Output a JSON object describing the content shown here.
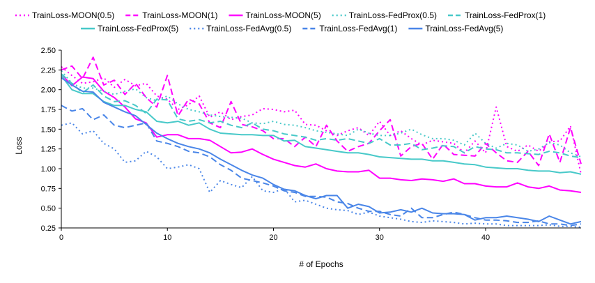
{
  "chart_data": {
    "type": "line",
    "xlabel": "# of Epochs",
    "ylabel": "Loss",
    "xlim": [
      0,
      49
    ],
    "ylim": [
      0.25,
      2.5
    ],
    "xticks": [
      0,
      10,
      20,
      30,
      40
    ],
    "yticks": [
      0.25,
      0.5,
      0.75,
      1.0,
      1.25,
      1.5,
      1.75,
      2.0,
      2.25,
      2.5
    ],
    "xtick_labels": [
      "0",
      "10",
      "20",
      "30",
      "40"
    ],
    "ytick_labels": [
      "0.25",
      "0.50",
      "0.75",
      "1.00",
      "1.25",
      "1.50",
      "1.75",
      "2.00",
      "2.25",
      "2.50"
    ],
    "grid": false,
    "legend_position": "top",
    "x": [
      0,
      1,
      2,
      3,
      4,
      5,
      6,
      7,
      8,
      9,
      10,
      11,
      12,
      13,
      14,
      15,
      16,
      17,
      18,
      19,
      20,
      21,
      22,
      23,
      24,
      25,
      26,
      27,
      28,
      29,
      30,
      31,
      32,
      33,
      34,
      35,
      36,
      37,
      38,
      39,
      40,
      41,
      42,
      43,
      44,
      45,
      46,
      47,
      48,
      49
    ],
    "series": [
      {
        "name": "TrainLoss-MOON(0.5)",
        "color": "#ff00ff",
        "dash": "dot",
        "values": [
          2.29,
          2.18,
          2.08,
          2.1,
          2.15,
          2.03,
          2.13,
          2.05,
          2.08,
          1.92,
          1.88,
          1.75,
          1.81,
          1.92,
          1.65,
          1.72,
          1.62,
          1.66,
          1.68,
          1.76,
          1.75,
          1.72,
          1.74,
          1.56,
          1.55,
          1.48,
          1.42,
          1.48,
          1.52,
          1.42,
          1.6,
          1.42,
          1.48,
          1.38,
          1.3,
          1.36,
          1.34,
          1.32,
          1.2,
          1.35,
          1.2,
          1.78,
          1.28,
          1.22,
          1.3,
          1.22,
          1.34,
          1.35,
          1.54,
          0.93
        ]
      },
      {
        "name": "TrainLoss-MOON(1)",
        "color": "#ff00ff",
        "dash": "dash",
        "values": [
          2.25,
          2.3,
          2.14,
          2.41,
          2.06,
          2.12,
          1.94,
          2.08,
          1.9,
          1.78,
          2.18,
          1.67,
          1.88,
          1.82,
          1.58,
          1.52,
          1.85,
          1.56,
          1.53,
          1.48,
          1.38,
          1.38,
          1.28,
          1.4,
          1.28,
          1.55,
          1.35,
          1.22,
          1.28,
          1.32,
          1.48,
          1.62,
          1.16,
          1.28,
          1.32,
          1.12,
          1.31,
          1.18,
          1.17,
          1.16,
          1.32,
          1.2,
          1.1,
          1.08,
          1.22,
          1.04,
          1.44,
          1.08,
          1.52,
          1.06
        ]
      },
      {
        "name": "TrainLoss-MOON(5)",
        "color": "#ff00ff",
        "dash": "solid",
        "values": [
          2.2,
          2.05,
          2.16,
          2.14,
          1.98,
          1.9,
          1.78,
          1.63,
          1.58,
          1.4,
          1.43,
          1.43,
          1.38,
          1.38,
          1.36,
          1.28,
          1.2,
          1.21,
          1.25,
          1.18,
          1.12,
          1.08,
          1.04,
          1.02,
          1.06,
          1.0,
          0.97,
          0.96,
          0.96,
          0.98,
          0.88,
          0.88,
          0.86,
          0.85,
          0.87,
          0.86,
          0.84,
          0.87,
          0.81,
          0.81,
          0.78,
          0.77,
          0.77,
          0.82,
          0.77,
          0.75,
          0.78,
          0.73,
          0.72,
          0.7
        ]
      },
      {
        "name": "TrainLoss-FedProx(0.5)",
        "color": "#48c9c9",
        "dash": "dot",
        "values": [
          2.24,
          2.08,
          2.02,
          2.02,
          1.98,
          1.94,
          1.98,
          2.01,
          1.9,
          1.86,
          1.92,
          1.82,
          1.75,
          1.72,
          1.68,
          1.66,
          1.65,
          1.64,
          1.58,
          1.57,
          1.6,
          1.56,
          1.55,
          1.52,
          1.48,
          1.46,
          1.44,
          1.42,
          1.5,
          1.45,
          1.42,
          1.42,
          1.45,
          1.5,
          1.43,
          1.38,
          1.38,
          1.36,
          1.3,
          1.45,
          1.32,
          1.26,
          1.32,
          1.3,
          1.22,
          1.25,
          1.33,
          1.3,
          1.2,
          1.15
        ]
      },
      {
        "name": "TrainLoss-FedProx(1)",
        "color": "#48c9c9",
        "dash": "dash",
        "values": [
          2.2,
          2.08,
          1.96,
          2.06,
          1.92,
          1.85,
          1.86,
          1.8,
          1.7,
          1.88,
          1.87,
          1.63,
          1.6,
          1.62,
          1.58,
          1.6,
          1.55,
          1.52,
          1.58,
          1.5,
          1.48,
          1.44,
          1.42,
          1.4,
          1.36,
          1.38,
          1.36,
          1.38,
          1.35,
          1.32,
          1.38,
          1.3,
          1.3,
          1.32,
          1.24,
          1.26,
          1.29,
          1.28,
          1.2,
          1.28,
          1.25,
          1.24,
          1.2,
          1.2,
          1.19,
          1.18,
          1.22,
          1.2,
          1.16,
          1.14
        ]
      },
      {
        "name": "TrainLoss-FedProx(5)",
        "color": "#48c9c9",
        "dash": "solid",
        "values": [
          2.18,
          2.0,
          1.95,
          1.95,
          1.85,
          1.8,
          1.8,
          1.75,
          1.72,
          1.6,
          1.58,
          1.6,
          1.55,
          1.58,
          1.5,
          1.45,
          1.44,
          1.43,
          1.43,
          1.42,
          1.42,
          1.35,
          1.36,
          1.28,
          1.26,
          1.24,
          1.22,
          1.2,
          1.2,
          1.18,
          1.15,
          1.14,
          1.13,
          1.12,
          1.12,
          1.1,
          1.1,
          1.08,
          1.06,
          1.05,
          1.02,
          1.01,
          1.0,
          1.0,
          0.98,
          0.97,
          0.97,
          0.95,
          0.96,
          0.93
        ]
      },
      {
        "name": "TrainLoss-FedAvg(0.5)",
        "color": "#4a86e8",
        "dash": "dot",
        "values": [
          1.55,
          1.58,
          1.44,
          1.48,
          1.32,
          1.25,
          1.08,
          1.1,
          1.22,
          1.15,
          1.0,
          1.02,
          1.05,
          1.0,
          0.7,
          0.85,
          0.8,
          0.76,
          0.9,
          0.72,
          0.7,
          0.75,
          0.58,
          0.6,
          0.55,
          0.5,
          0.48,
          0.47,
          0.42,
          0.45,
          0.4,
          0.38,
          0.36,
          0.33,
          0.32,
          0.34,
          0.33,
          0.32,
          0.3,
          0.31,
          0.3,
          0.3,
          0.28,
          0.28,
          0.28,
          0.28,
          0.29,
          0.27,
          0.27,
          0.26
        ]
      },
      {
        "name": "TrainLoss-FedAvg(1)",
        "color": "#4a86e8",
        "dash": "dash",
        "values": [
          1.8,
          1.73,
          1.76,
          1.62,
          1.68,
          1.55,
          1.52,
          1.55,
          1.58,
          1.35,
          1.32,
          1.28,
          1.22,
          1.2,
          1.15,
          1.05,
          0.98,
          0.88,
          0.85,
          0.82,
          0.78,
          0.72,
          0.7,
          0.65,
          0.65,
          0.64,
          0.58,
          0.56,
          0.5,
          0.46,
          0.46,
          0.42,
          0.4,
          0.5,
          0.38,
          0.38,
          0.42,
          0.45,
          0.42,
          0.38,
          0.35,
          0.35,
          0.34,
          0.32,
          0.32,
          0.34,
          0.3,
          0.3,
          0.28,
          0.3
        ]
      },
      {
        "name": "TrainLoss-FedAvg(5)",
        "color": "#4a86e8",
        "dash": "solid",
        "values": [
          2.15,
          2.06,
          1.98,
          1.97,
          1.84,
          1.78,
          1.72,
          1.67,
          1.56,
          1.45,
          1.38,
          1.32,
          1.28,
          1.25,
          1.2,
          1.12,
          1.05,
          0.98,
          0.92,
          0.88,
          0.8,
          0.74,
          0.72,
          0.66,
          0.62,
          0.66,
          0.66,
          0.5,
          0.55,
          0.52,
          0.44,
          0.45,
          0.48,
          0.45,
          0.5,
          0.44,
          0.43,
          0.43,
          0.42,
          0.35,
          0.38,
          0.38,
          0.4,
          0.38,
          0.36,
          0.33,
          0.4,
          0.35,
          0.3,
          0.33
        ]
      }
    ]
  }
}
